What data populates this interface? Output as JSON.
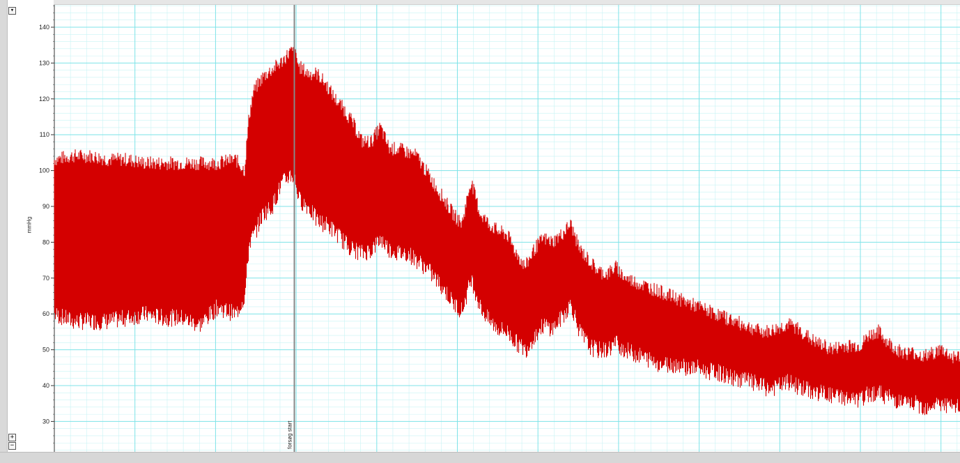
{
  "controls": {
    "collapse_label": "▾",
    "zoom_in_label": "+",
    "zoom_out_label": "−"
  },
  "colors": {
    "trace": "#d40000",
    "grid_major": "#7fe3e8",
    "grid_minor": "#c8f3f5",
    "marker": "#888888"
  },
  "chart_data": {
    "type": "line",
    "ylabel": "mmHg",
    "ylim": [
      22,
      146
    ],
    "yticks": [
      30,
      40,
      50,
      60,
      70,
      80,
      90,
      100,
      110,
      120,
      130,
      140
    ],
    "grid": true,
    "marker": {
      "label": "forsøg start",
      "x_fraction_of_record": 0.265
    },
    "series": [
      {
        "envelope_points": [
          [
            0.0,
            60,
            103
          ],
          [
            0.02,
            58,
            104
          ],
          [
            0.04,
            58,
            104
          ],
          [
            0.06,
            58,
            103
          ],
          [
            0.08,
            59,
            103
          ],
          [
            0.1,
            60,
            102
          ],
          [
            0.12,
            59,
            102
          ],
          [
            0.14,
            59,
            102
          ],
          [
            0.16,
            57,
            102
          ],
          [
            0.18,
            62,
            102
          ],
          [
            0.2,
            60,
            103
          ],
          [
            0.21,
            65,
            100
          ],
          [
            0.215,
            80,
            115
          ],
          [
            0.22,
            82,
            122
          ],
          [
            0.23,
            88,
            126
          ],
          [
            0.24,
            90,
            128
          ],
          [
            0.25,
            96,
            130
          ],
          [
            0.26,
            99,
            133
          ],
          [
            0.265,
            98,
            133
          ],
          [
            0.27,
            92,
            129
          ],
          [
            0.28,
            90,
            127
          ],
          [
            0.29,
            86,
            127
          ],
          [
            0.3,
            85,
            124
          ],
          [
            0.31,
            83,
            120
          ],
          [
            0.32,
            80,
            117
          ],
          [
            0.33,
            78,
            113
          ],
          [
            0.34,
            77,
            108
          ],
          [
            0.35,
            78,
            108
          ],
          [
            0.36,
            81,
            112
          ],
          [
            0.37,
            78,
            106
          ],
          [
            0.38,
            77,
            106
          ],
          [
            0.39,
            77,
            105
          ],
          [
            0.4,
            75,
            104
          ],
          [
            0.41,
            73,
            100
          ],
          [
            0.42,
            70,
            96
          ],
          [
            0.43,
            67,
            92
          ],
          [
            0.44,
            63,
            88
          ],
          [
            0.45,
            61,
            85
          ],
          [
            0.46,
            70,
            97
          ],
          [
            0.47,
            62,
            88
          ],
          [
            0.48,
            58,
            85
          ],
          [
            0.49,
            56,
            83
          ],
          [
            0.5,
            55,
            82
          ],
          [
            0.51,
            52,
            77
          ],
          [
            0.52,
            50,
            73
          ],
          [
            0.53,
            54,
            78
          ],
          [
            0.54,
            57,
            81
          ],
          [
            0.55,
            56,
            80
          ],
          [
            0.56,
            59,
            82
          ],
          [
            0.57,
            63,
            85
          ],
          [
            0.58,
            55,
            78
          ],
          [
            0.59,
            51,
            75
          ],
          [
            0.6,
            50,
            72
          ],
          [
            0.61,
            50,
            71
          ],
          [
            0.62,
            52,
            73
          ],
          [
            0.63,
            50,
            70
          ],
          [
            0.64,
            49,
            69
          ],
          [
            0.65,
            48,
            68
          ],
          [
            0.66,
            47,
            67
          ],
          [
            0.67,
            46,
            66
          ],
          [
            0.68,
            46,
            65
          ],
          [
            0.69,
            46,
            64
          ],
          [
            0.7,
            45,
            63
          ],
          [
            0.71,
            45,
            62
          ],
          [
            0.72,
            44,
            61
          ],
          [
            0.73,
            44,
            60
          ],
          [
            0.74,
            43,
            59
          ],
          [
            0.75,
            42,
            58
          ],
          [
            0.76,
            42,
            57
          ],
          [
            0.77,
            41,
            56
          ],
          [
            0.78,
            40,
            55
          ],
          [
            0.79,
            39,
            55
          ],
          [
            0.8,
            40,
            56
          ],
          [
            0.81,
            41,
            57
          ],
          [
            0.82,
            40,
            56
          ],
          [
            0.83,
            39,
            54
          ],
          [
            0.84,
            38,
            52
          ],
          [
            0.85,
            38,
            51
          ],
          [
            0.86,
            37,
            50
          ],
          [
            0.87,
            37,
            51
          ],
          [
            0.88,
            36,
            51
          ],
          [
            0.89,
            36,
            51
          ],
          [
            0.9,
            38,
            54
          ],
          [
            0.91,
            38,
            55
          ],
          [
            0.92,
            37,
            52
          ],
          [
            0.93,
            36,
            50
          ],
          [
            0.94,
            35,
            49
          ],
          [
            0.95,
            35,
            49
          ],
          [
            0.96,
            34,
            48
          ],
          [
            0.97,
            35,
            49
          ],
          [
            0.98,
            35,
            50
          ],
          [
            0.99,
            34,
            48
          ],
          [
            1.0,
            34,
            48
          ]
        ]
      }
    ]
  }
}
